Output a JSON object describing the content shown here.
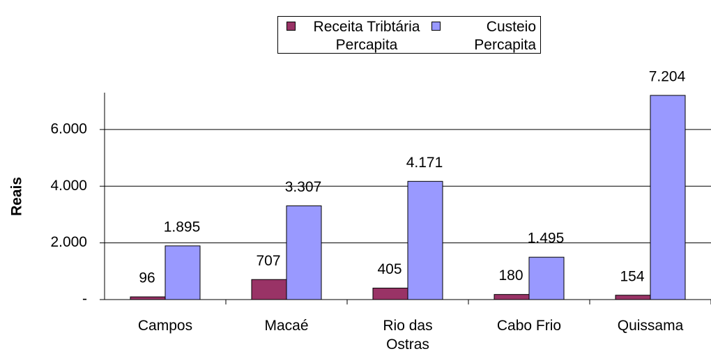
{
  "chart_data": {
    "type": "bar",
    "y_label": "Reais",
    "categories": [
      "Campos",
      "Macaé",
      "Rio das Ostras",
      "Cabo Frio",
      "Quissama"
    ],
    "series": [
      {
        "name": "Receita Tribtária Percapita",
        "color": "#993366",
        "values": [
          96,
          707,
          405,
          180,
          154
        ],
        "value_labels": [
          "96",
          "707",
          "405",
          "180",
          "154"
        ]
      },
      {
        "name": "Custeio Percapita",
        "color": "#9999ff",
        "values": [
          1895,
          3307,
          4171,
          1495,
          7204
        ],
        "value_labels": [
          "1.895",
          "3.307",
          "4.171",
          "1.495",
          "7.204"
        ]
      }
    ],
    "ylim": [
      0,
      7300
    ],
    "yticks": [
      {
        "value": 0,
        "label": "-"
      },
      {
        "value": 2000,
        "label": "2.000"
      },
      {
        "value": 4000,
        "label": "4.000"
      },
      {
        "value": 6000,
        "label": "6.000"
      }
    ],
    "grid": true,
    "legend": "top"
  }
}
